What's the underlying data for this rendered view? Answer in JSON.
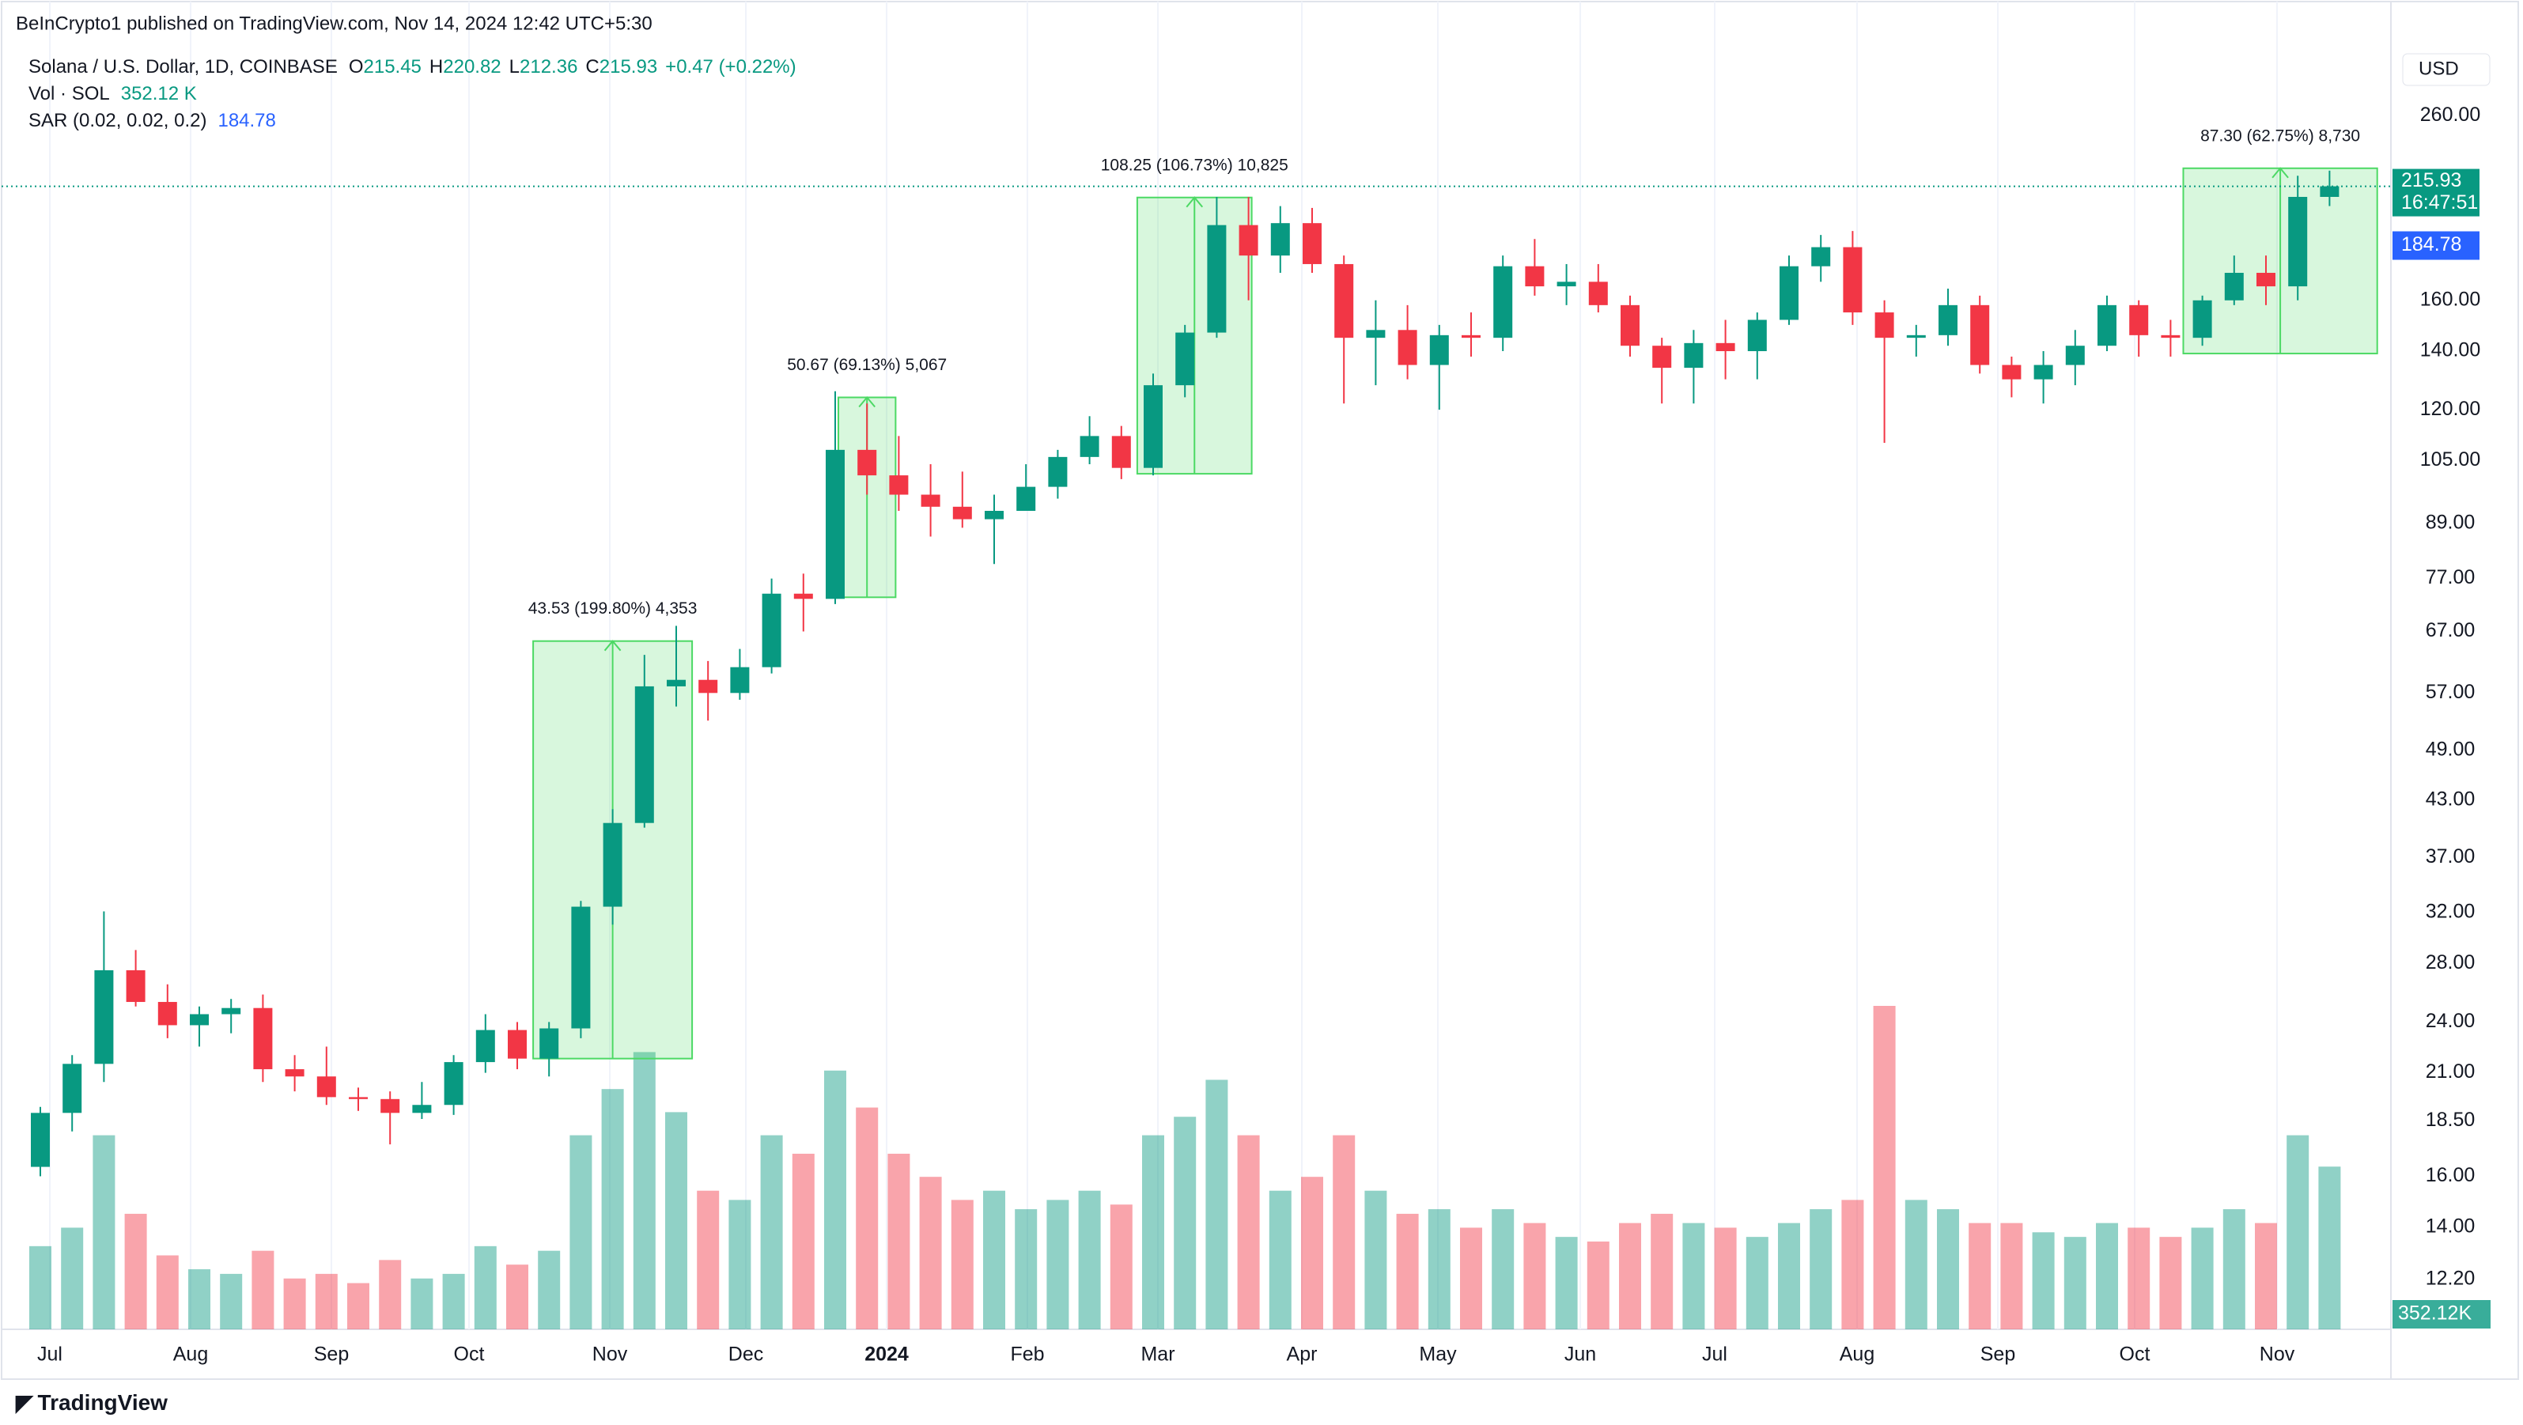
{
  "header": {
    "published": "BeInCrypto1 published on TradingView.com, Nov 14, 2024 12:42 UTC+5:30",
    "symbol": "Solana / U.S. Dollar, 1D, COINBASE",
    "ohlc": [
      {
        "label": "O",
        "value": 215.45
      },
      {
        "label": "H",
        "value": 220.82
      },
      {
        "label": "L",
        "value": 212.36
      },
      {
        "label": "C",
        "value": 215.93
      }
    ],
    "change": "+0.47 (+0.22%)",
    "volume_label": "Vol · SOL",
    "volume_value": "352.12 K",
    "sar_label": "SAR (0.02, 0.02, 0.2)",
    "currency": "USD",
    "countdown": "16:47:51",
    "volume_badge": "352.12K",
    "footer": "TradingView"
  },
  "chart_data": {
    "type": "candlestick",
    "log_scale": true,
    "grid": true,
    "up_color": "#089981",
    "down_color": "#f23645",
    "sar_color": "#2962ff",
    "box_color": "#4cd964",
    "categories": [
      "Jul",
      "Aug",
      "Sep",
      "Oct",
      "Nov",
      "Dec",
      "2024",
      "Feb",
      "Mar",
      "Apr",
      "May",
      "Jun",
      "Jul",
      "Aug",
      "Sep",
      "Oct",
      "Nov"
    ],
    "ylim": [
      10.7,
      313
    ],
    "yticks": [
      {
        "value": 12.2,
        "label": "12.20"
      },
      {
        "value": 14,
        "label": "14.00"
      },
      {
        "value": 16,
        "label": "16.00"
      },
      {
        "value": 18.5,
        "label": "18.50"
      },
      {
        "value": 21,
        "label": "21.00"
      },
      {
        "value": 24,
        "label": "24.00"
      },
      {
        "value": 28,
        "label": "28.00"
      },
      {
        "value": 32,
        "label": "32.00"
      },
      {
        "value": 37,
        "label": "37.00"
      },
      {
        "value": 43,
        "label": "43.00"
      },
      {
        "value": 49,
        "label": "49.00"
      },
      {
        "value": 57,
        "label": "57.00"
      },
      {
        "value": 67,
        "label": "67.00"
      },
      {
        "value": 77,
        "label": "77.00"
      },
      {
        "value": 89,
        "label": "89.00"
      },
      {
        "value": 105,
        "label": "105.00"
      },
      {
        "value": 120,
        "label": "120.00"
      },
      {
        "value": 140,
        "label": "140.00"
      },
      {
        "value": 160,
        "label": "160.00"
      },
      {
        "value": 260,
        "label": "260.00"
      }
    ],
    "last_price": 215.93,
    "sar_last": 184.78,
    "candles": [
      [
        16.4,
        19.2,
        16,
        18.9
      ],
      [
        18.9,
        22,
        18,
        21.5
      ],
      [
        21.5,
        32.1,
        20.5,
        27.5
      ],
      [
        27.5,
        29,
        25,
        25.3
      ],
      [
        25.3,
        26.5,
        23,
        23.8
      ],
      [
        23.8,
        25,
        22.5,
        24.5
      ],
      [
        24.5,
        25.5,
        23.3,
        24.9
      ],
      [
        24.9,
        25.8,
        20.5,
        21.2
      ],
      [
        21.2,
        22,
        20,
        20.8
      ],
      [
        20.8,
        22.5,
        19.3,
        19.7
      ],
      [
        19.7,
        20.2,
        19,
        19.6
      ],
      [
        19.6,
        20,
        17.4,
        18.9
      ],
      [
        18.9,
        20.5,
        18.6,
        19.3
      ],
      [
        19.3,
        22,
        18.8,
        21.6
      ],
      [
        21.6,
        24.5,
        21,
        23.5
      ],
      [
        23.5,
        24,
        21.2,
        21.8
      ],
      [
        21.8,
        24,
        20.8,
        23.6
      ],
      [
        23.6,
        33,
        23,
        32.5
      ],
      [
        32.5,
        42,
        31,
        40.5
      ],
      [
        40.5,
        63,
        40,
        58
      ],
      [
        58,
        68,
        55,
        59
      ],
      [
        59,
        62,
        53,
        57
      ],
      [
        57,
        64,
        56,
        61
      ],
      [
        61,
        77,
        60,
        74
      ],
      [
        74,
        78,
        67,
        73
      ],
      [
        73,
        126,
        72,
        108
      ],
      [
        108,
        122,
        96,
        101
      ],
      [
        101,
        112,
        92,
        96
      ],
      [
        96,
        104,
        86,
        93
      ],
      [
        93,
        102,
        88,
        90
      ],
      [
        90,
        96,
        80,
        92
      ],
      [
        92,
        104,
        92,
        98
      ],
      [
        98,
        108,
        95,
        106
      ],
      [
        106,
        118,
        104,
        112
      ],
      [
        112,
        115,
        100,
        103
      ],
      [
        103,
        132,
        101,
        128
      ],
      [
        128,
        150,
        124,
        147
      ],
      [
        147,
        210,
        145,
        195
      ],
      [
        195,
        210,
        160,
        180
      ],
      [
        180,
        205,
        172,
        196
      ],
      [
        196,
        204,
        172,
        176
      ],
      [
        176,
        180,
        122,
        145
      ],
      [
        145,
        160,
        128,
        148
      ],
      [
        148,
        158,
        130,
        135
      ],
      [
        135,
        150,
        120,
        146
      ],
      [
        146,
        155,
        138,
        145
      ],
      [
        145,
        180,
        140,
        175
      ],
      [
        175,
        188,
        162,
        166
      ],
      [
        166,
        176,
        158,
        168
      ],
      [
        168,
        176,
        155,
        158
      ],
      [
        158,
        162,
        138,
        142
      ],
      [
        142,
        145,
        122,
        134
      ],
      [
        134,
        148,
        122,
        143
      ],
      [
        143,
        152,
        130,
        140
      ],
      [
        140,
        155,
        130,
        152
      ],
      [
        152,
        180,
        150,
        175
      ],
      [
        175,
        190,
        168,
        184
      ],
      [
        184,
        192,
        150,
        155
      ],
      [
        155,
        160,
        110,
        145
      ],
      [
        145,
        150,
        138,
        146
      ],
      [
        146,
        165,
        142,
        158
      ],
      [
        158,
        162,
        132,
        135
      ],
      [
        135,
        138,
        124,
        130
      ],
      [
        130,
        140,
        122,
        135
      ],
      [
        135,
        148,
        128,
        142
      ],
      [
        142,
        162,
        140,
        158
      ],
      [
        158,
        160,
        138,
        146
      ],
      [
        146,
        152,
        138,
        145
      ],
      [
        145,
        162,
        142,
        160
      ],
      [
        160,
        180,
        158,
        172
      ],
      [
        172,
        180,
        158,
        166
      ],
      [
        166,
        222,
        160,
        210
      ],
      [
        210,
        225,
        205,
        215.93
      ]
    ],
    "volume": [
      180,
      220,
      420,
      250,
      160,
      130,
      120,
      170,
      110,
      120,
      100,
      150,
      110,
      120,
      180,
      140,
      170,
      420,
      520,
      600,
      470,
      300,
      280,
      420,
      380,
      560,
      480,
      380,
      330,
      280,
      300,
      260,
      280,
      300,
      270,
      420,
      460,
      540,
      420,
      300,
      330,
      420,
      300,
      250,
      260,
      220,
      260,
      230,
      200,
      190,
      230,
      250,
      230,
      220,
      200,
      230,
      260,
      280,
      700,
      280,
      260,
      230,
      230,
      210,
      200,
      230,
      220,
      200,
      220,
      260,
      230,
      420,
      352.12
    ],
    "measures": [
      {
        "label": "43.53 (199.80%) 4,353",
        "from": 21.8,
        "to": 65.33
      },
      {
        "label": "50.67 (69.13%) 5,067",
        "from": 73.3,
        "to": 123.97
      },
      {
        "label": "108.25 (106.73%) 10,825",
        "from": 101.42,
        "to": 209.67
      },
      {
        "label": "87.30 (62.75%) 8,730",
        "from": 139.12,
        "to": 226.42
      }
    ]
  }
}
